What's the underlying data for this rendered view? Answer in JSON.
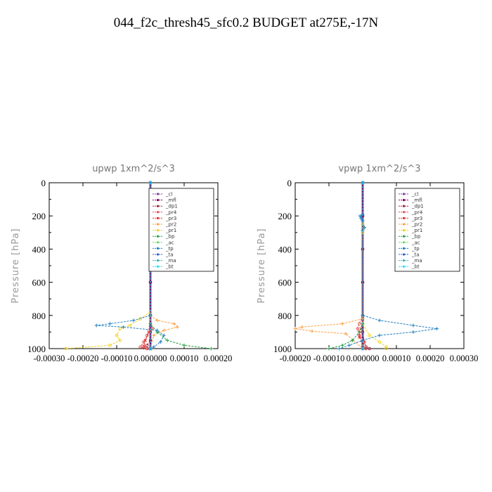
{
  "figure": {
    "title": "044_f2c_thresh45_sfc0.2  BUDGET at275E,-17N"
  },
  "chart_data": [
    {
      "type": "line",
      "title": "upwp   1xm^2/s^3",
      "ylabel": "Pressure [hPa]",
      "xlabel": "",
      "xlim": [
        -0.0003,
        0.0002
      ],
      "ylim": [
        1000,
        0
      ],
      "xticks": [
        -0.0003,
        -0.0002,
        -0.0001,
        0.0,
        0.0001,
        0.0002
      ],
      "xtick_labels": [
        "-0.00030",
        "-0.00020",
        "-0.00010",
        "0.000000",
        "0.00010",
        "0.00020"
      ],
      "yticks": [
        0,
        200,
        400,
        600,
        800,
        1000
      ],
      "legend_position": "top-right",
      "series": [
        {
          "name": "_cl",
          "color": "#8040a0",
          "marker": "o",
          "points": [
            [
              0,
              0
            ],
            [
              0,
              200
            ],
            [
              0,
              400
            ],
            [
              0,
              600
            ],
            [
              0,
              800
            ],
            [
              0,
              1000
            ]
          ]
        },
        {
          "name": "_mfl",
          "color": "#800060",
          "marker": "o",
          "points": [
            [
              0,
              0
            ],
            [
              0,
              200
            ],
            [
              0,
              400
            ],
            [
              0,
              600
            ],
            [
              0,
              800
            ],
            [
              0,
              1000
            ]
          ]
        },
        {
          "name": "_dp1",
          "color": "#a02040",
          "marker": "o",
          "points": [
            [
              0,
              0
            ],
            [
              0,
              400
            ],
            [
              0,
              800
            ],
            [
              0,
              900
            ],
            [
              0,
              950
            ],
            [
              -1e-05,
              980
            ],
            [
              -2e-05,
              995
            ],
            [
              -1e-05,
              1000
            ]
          ]
        },
        {
          "name": "_pr4",
          "color": "#e05050",
          "marker": "o",
          "points": [
            [
              0,
              0
            ],
            [
              0,
              800
            ],
            [
              5e-06,
              880
            ],
            [
              -1e-05,
              920
            ],
            [
              -2e-05,
              960
            ],
            [
              -3e-05,
              990
            ],
            [
              -1e-05,
              1000
            ]
          ]
        },
        {
          "name": "_pr3",
          "color": "#e03030",
          "marker": "x",
          "points": [
            [
              0,
              0
            ],
            [
              0,
              800
            ],
            [
              -5e-06,
              900
            ],
            [
              -1.5e-05,
              950
            ],
            [
              -2e-05,
              985
            ],
            [
              0,
              1000
            ]
          ]
        },
        {
          "name": "_pr2",
          "color": "#ffa040",
          "marker": "+",
          "points": [
            [
              0,
              0
            ],
            [
              0,
              800
            ],
            [
              2e-05,
              830
            ],
            [
              7e-05,
              850
            ],
            [
              8e-05,
              870
            ],
            [
              4e-05,
              890
            ],
            [
              1e-05,
              920
            ],
            [
              0,
              1000
            ]
          ]
        },
        {
          "name": "_pr1",
          "color": "#f0d020",
          "marker": "o",
          "points": [
            [
              0,
              0
            ],
            [
              0,
              780
            ],
            [
              -3e-05,
              820
            ],
            [
              -6e-05,
              860
            ],
            [
              -9e-05,
              880
            ],
            [
              -0.0001,
              920
            ],
            [
              -9e-05,
              950
            ],
            [
              -0.00012,
              980
            ],
            [
              -0.00025,
              1000
            ]
          ]
        },
        {
          "name": "_bp",
          "color": "#20a040",
          "marker": "+",
          "points": [
            [
              0,
              0
            ],
            [
              0,
              850
            ],
            [
              2e-05,
              900
            ],
            [
              5e-05,
              950
            ],
            [
              0.0001,
              980
            ],
            [
              0.00018,
              1000
            ]
          ]
        },
        {
          "name": "_ac",
          "color": "#60e060",
          "marker": "o",
          "points": [
            [
              0,
              0
            ],
            [
              0,
              1000
            ]
          ]
        },
        {
          "name": "_tp",
          "color": "#2080c0",
          "marker": "+",
          "points": [
            [
              0,
              0
            ],
            [
              0,
              800
            ],
            [
              -5e-05,
              830
            ],
            [
              -0.00012,
              850
            ],
            [
              -0.00016,
              860
            ],
            [
              -8e-05,
              870
            ],
            [
              2e-05,
              890
            ],
            [
              4e-05,
              920
            ],
            [
              3e-05,
              960
            ],
            [
              1e-05,
              990
            ],
            [
              0,
              1000
            ]
          ]
        },
        {
          "name": "_ta",
          "color": "#3060d0",
          "marker": "x",
          "points": [
            [
              0,
              0
            ],
            [
              0,
              1000
            ]
          ]
        },
        {
          "name": "_ma",
          "color": "#40b0c0",
          "marker": "-",
          "points": [
            [
              0,
              0
            ],
            [
              0,
              1000
            ]
          ]
        },
        {
          "name": "_bt",
          "color": "#20e0f0",
          "marker": "o",
          "points": [
            [
              0,
              0
            ],
            [
              0,
              1000
            ]
          ]
        }
      ]
    },
    {
      "type": "line",
      "title": "vpwp   1xm^2/s^3",
      "ylabel": "Pressure [hPa]",
      "xlabel": "",
      "xlim": [
        -0.0002,
        0.0003
      ],
      "ylim": [
        1000,
        0
      ],
      "xticks": [
        -0.0002,
        -0.0001,
        0.0,
        0.0001,
        0.0002,
        0.0003
      ],
      "xtick_labels": [
        "-0.00020",
        "-0.00010",
        "0.000000",
        "0.00010",
        "0.00020",
        "0.00030"
      ],
      "yticks": [
        0,
        200,
        400,
        600,
        800,
        1000
      ],
      "legend_position": "top-right",
      "series": [
        {
          "name": "_cl",
          "color": "#8040a0",
          "marker": "o",
          "points": [
            [
              0,
              0
            ],
            [
              0,
              200
            ],
            [
              0,
              400
            ],
            [
              0,
              600
            ],
            [
              0,
              800
            ],
            [
              0,
              1000
            ]
          ]
        },
        {
          "name": "_mfl",
          "color": "#800060",
          "marker": "o",
          "points": [
            [
              0,
              0
            ],
            [
              0,
              200
            ],
            [
              0,
              400
            ],
            [
              0,
              600
            ],
            [
              0,
              800
            ],
            [
              0,
              1000
            ]
          ]
        },
        {
          "name": "_dp1",
          "color": "#a02040",
          "marker": "o",
          "points": [
            [
              0,
              0
            ],
            [
              0,
              800
            ],
            [
              0,
              900
            ],
            [
              5e-06,
              960
            ],
            [
              1e-05,
              990
            ],
            [
              2e-05,
              1000
            ]
          ]
        },
        {
          "name": "_pr4",
          "color": "#e05050",
          "marker": "o",
          "points": [
            [
              0,
              0
            ],
            [
              0,
              800
            ],
            [
              -1e-05,
              850
            ],
            [
              -1.5e-05,
              880
            ],
            [
              -1e-05,
              920
            ],
            [
              5e-06,
              960
            ],
            [
              1e-05,
              1000
            ]
          ]
        },
        {
          "name": "_pr3",
          "color": "#e03030",
          "marker": "x",
          "points": [
            [
              0,
              0
            ],
            [
              0,
              820
            ],
            [
              -5e-06,
              880
            ],
            [
              -1e-05,
              930
            ],
            [
              0,
              980
            ],
            [
              5e-06,
              1000
            ]
          ]
        },
        {
          "name": "_pr2",
          "color": "#ffa040",
          "marker": "+",
          "points": [
            [
              0,
              0
            ],
            [
              0,
              250
            ],
            [
              3e-06,
              270
            ],
            [
              0,
              300
            ],
            [
              0,
              820
            ],
            [
              -6e-05,
              850
            ],
            [
              -0.00018,
              870
            ],
            [
              -0.0002,
              880
            ],
            [
              -0.00015,
              895
            ],
            [
              -5e-05,
              910
            ],
            [
              0,
              1000
            ]
          ]
        },
        {
          "name": "_pr1",
          "color": "#f0d020",
          "marker": "o",
          "points": [
            [
              0,
              0
            ],
            [
              0,
              250
            ],
            [
              5e-06,
              270
            ],
            [
              0,
              300
            ],
            [
              0,
              850
            ],
            [
              2e-05,
              920
            ],
            [
              5e-05,
              960
            ],
            [
              7e-05,
              990
            ],
            [
              7e-05,
              1000
            ]
          ]
        },
        {
          "name": "_bp",
          "color": "#20a040",
          "marker": "+",
          "points": [
            [
              0,
              0
            ],
            [
              0,
              850
            ],
            [
              -1e-05,
              900
            ],
            [
              -3e-05,
              950
            ],
            [
              -6e-05,
              980
            ],
            [
              -0.0001,
              1000
            ]
          ]
        },
        {
          "name": "_ac",
          "color": "#60e060",
          "marker": "o",
          "points": [
            [
              0,
              0
            ],
            [
              0,
              1000
            ]
          ]
        },
        {
          "name": "_tp",
          "color": "#2080c0",
          "marker": "+",
          "points": [
            [
              0,
              0
            ],
            [
              0,
              190
            ],
            [
              -8e-06,
              200
            ],
            [
              -5e-06,
              215
            ],
            [
              0,
              230
            ],
            [
              5e-06,
              270
            ],
            [
              0,
              290
            ],
            [
              0,
              800
            ],
            [
              5e-05,
              830
            ],
            [
              0.00015,
              860
            ],
            [
              0.00022,
              880
            ],
            [
              0.00015,
              900
            ],
            [
              5e-05,
              920
            ],
            [
              0,
              950
            ],
            [
              -4e-05,
              980
            ],
            [
              -7e-05,
              1000
            ]
          ]
        },
        {
          "name": "_ta",
          "color": "#3060d0",
          "marker": "x",
          "points": [
            [
              0,
              0
            ],
            [
              0,
              1000
            ]
          ]
        },
        {
          "name": "_ma",
          "color": "#40b0c0",
          "marker": "-",
          "points": [
            [
              0,
              0
            ],
            [
              0,
              1000
            ]
          ]
        },
        {
          "name": "_bt",
          "color": "#20e0f0",
          "marker": "o",
          "points": [
            [
              0,
              0
            ],
            [
              0,
              1000
            ]
          ]
        }
      ]
    }
  ]
}
